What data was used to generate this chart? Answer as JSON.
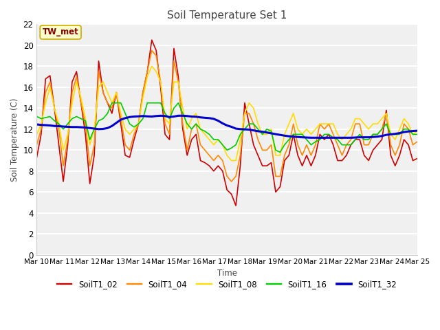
{
  "title": "Soil Temperature Set 1",
  "xlabel": "Time",
  "ylabel": "Soil Temperature (C)",
  "ylim": [
    0,
    22
  ],
  "yticks": [
    0,
    2,
    4,
    6,
    8,
    10,
    12,
    14,
    16,
    18,
    20,
    22
  ],
  "xtick_labels": [
    "Mar 10",
    "Mar 11",
    "Mar 12",
    "Mar 13",
    "Mar 14",
    "Mar 15",
    "Mar 16",
    "Mar 17",
    "Mar 18",
    "Mar 19",
    "Mar 20",
    "Mar 21",
    "Mar 22",
    "Mar 23",
    "Mar 24",
    "Mar 25"
  ],
  "annotation_text": "TW_met",
  "annotation_box_color": "#ffffcc",
  "annotation_text_color": "#880000",
  "fig_bg_color": "#ffffff",
  "plot_bg_color": "#f0f0f0",
  "grid_color": "#ffffff",
  "series_order": [
    "SoilT1_02",
    "SoilT1_04",
    "SoilT1_08",
    "SoilT1_16",
    "SoilT1_32"
  ],
  "series": {
    "SoilT1_02": {
      "color": "#cc0000",
      "linewidth": 1.2
    },
    "SoilT1_04": {
      "color": "#ff8800",
      "linewidth": 1.2
    },
    "SoilT1_08": {
      "color": "#ffdd00",
      "linewidth": 1.2
    },
    "SoilT1_16": {
      "color": "#00cc00",
      "linewidth": 1.2
    },
    "SoilT1_32": {
      "color": "#0000cc",
      "linewidth": 2.2
    }
  },
  "SoilT1_02": [
    9.3,
    11.5,
    16.8,
    17.1,
    14.0,
    10.5,
    7.0,
    10.5,
    16.5,
    17.5,
    14.5,
    11.5,
    6.8,
    9.5,
    18.5,
    15.5,
    14.5,
    13.5,
    15.5,
    12.5,
    9.5,
    9.3,
    11.0,
    12.5,
    15.5,
    17.5,
    20.5,
    19.5,
    16.0,
    11.5,
    11.0,
    19.7,
    17.0,
    12.0,
    9.5,
    11.0,
    11.5,
    9.0,
    8.8,
    8.5,
    8.0,
    8.5,
    8.0,
    6.2,
    5.8,
    4.7,
    8.5,
    14.5,
    12.5,
    10.5,
    9.5,
    8.5,
    8.5,
    8.8,
    6.0,
    6.5,
    9.0,
    9.5,
    11.5,
    9.5,
    8.5,
    9.5,
    8.5,
    9.5,
    11.5,
    11.0,
    11.5,
    10.5,
    9.0,
    9.0,
    9.5,
    10.5,
    11.0,
    11.0,
    9.5,
    9.0,
    10.0,
    10.5,
    11.0,
    13.8,
    9.5,
    8.5,
    9.5,
    11.0,
    10.5,
    9.0,
    9.2
  ],
  "SoilT1_04": [
    10.5,
    12.0,
    15.5,
    16.5,
    14.0,
    12.0,
    8.5,
    11.0,
    15.5,
    17.0,
    14.5,
    12.5,
    8.5,
    10.5,
    17.5,
    15.5,
    14.5,
    14.0,
    15.5,
    13.0,
    10.5,
    10.0,
    11.5,
    12.5,
    15.5,
    17.5,
    19.5,
    19.0,
    16.5,
    12.5,
    11.5,
    18.5,
    16.5,
    12.5,
    10.0,
    12.0,
    12.5,
    10.5,
    10.0,
    9.5,
    9.0,
    9.5,
    9.0,
    7.5,
    7.0,
    7.5,
    9.5,
    13.5,
    13.5,
    12.5,
    11.0,
    10.0,
    10.0,
    10.5,
    7.5,
    7.5,
    9.5,
    10.5,
    12.5,
    10.5,
    9.5,
    10.5,
    9.5,
    10.5,
    12.5,
    12.0,
    12.5,
    11.5,
    10.5,
    9.5,
    10.5,
    11.0,
    12.5,
    12.5,
    10.5,
    10.5,
    11.5,
    11.5,
    12.0,
    13.5,
    10.5,
    9.5,
    10.5,
    12.5,
    12.0,
    10.5,
    10.8
  ],
  "SoilT1_08": [
    11.5,
    12.5,
    14.5,
    16.0,
    14.0,
    12.5,
    10.0,
    11.5,
    14.5,
    16.5,
    15.0,
    13.0,
    10.5,
    12.0,
    16.0,
    16.5,
    15.5,
    14.5,
    15.5,
    13.5,
    12.0,
    11.5,
    12.0,
    12.5,
    15.0,
    17.0,
    18.0,
    17.5,
    16.5,
    13.0,
    12.5,
    16.5,
    16.5,
    14.0,
    12.0,
    13.0,
    13.5,
    12.0,
    11.5,
    11.0,
    10.5,
    11.0,
    10.5,
    9.5,
    9.0,
    9.0,
    11.0,
    13.5,
    14.5,
    14.0,
    12.5,
    11.5,
    11.5,
    12.0,
    9.5,
    9.5,
    11.5,
    12.5,
    13.5,
    12.0,
    11.5,
    12.0,
    11.5,
    12.0,
    12.5,
    12.5,
    12.5,
    12.5,
    11.5,
    11.0,
    11.5,
    12.0,
    13.0,
    13.0,
    12.5,
    12.0,
    12.5,
    12.5,
    13.0,
    13.5,
    11.5,
    11.0,
    12.0,
    13.0,
    12.5,
    11.5,
    11.8
  ],
  "SoilT1_16": [
    13.2,
    13.0,
    13.1,
    13.2,
    12.8,
    12.5,
    12.0,
    12.5,
    13.0,
    13.2,
    13.0,
    12.8,
    11.0,
    12.0,
    12.8,
    13.0,
    13.5,
    14.5,
    14.5,
    14.5,
    13.5,
    12.5,
    12.2,
    12.5,
    13.0,
    14.5,
    14.5,
    14.5,
    14.5,
    13.5,
    13.0,
    14.0,
    14.5,
    13.5,
    12.5,
    12.0,
    12.5,
    12.0,
    11.8,
    11.5,
    11.0,
    11.0,
    10.5,
    10.0,
    10.2,
    10.5,
    11.5,
    12.0,
    12.5,
    12.5,
    12.0,
    11.5,
    12.0,
    11.8,
    10.0,
    9.8,
    10.5,
    11.0,
    11.5,
    11.5,
    11.5,
    11.0,
    10.5,
    10.8,
    11.0,
    11.5,
    11.5,
    11.2,
    11.0,
    10.5,
    10.5,
    10.5,
    11.0,
    11.5,
    11.0,
    11.0,
    11.5,
    11.5,
    12.0,
    12.5,
    11.5,
    11.5,
    11.5,
    12.0,
    12.0,
    11.5,
    11.5
  ],
  "SoilT1_32": [
    12.45,
    12.4,
    12.38,
    12.35,
    12.3,
    12.28,
    12.25,
    12.22,
    12.2,
    12.2,
    12.18,
    12.15,
    12.1,
    12.05,
    12.0,
    12.02,
    12.1,
    12.3,
    12.6,
    12.9,
    13.05,
    13.15,
    13.2,
    13.22,
    13.25,
    13.22,
    13.2,
    13.25,
    13.28,
    13.25,
    13.15,
    13.2,
    13.28,
    13.28,
    13.25,
    13.2,
    13.18,
    13.12,
    13.08,
    13.05,
    12.98,
    12.8,
    12.55,
    12.35,
    12.22,
    12.05,
    12.0,
    11.98,
    11.95,
    11.88,
    11.8,
    11.75,
    11.68,
    11.6,
    11.52,
    11.45,
    11.38,
    11.32,
    11.28,
    11.25,
    11.22,
    11.2,
    11.18,
    11.18,
    11.18,
    11.18,
    11.18,
    11.18,
    11.18,
    11.18,
    11.18,
    11.18,
    11.2,
    11.22,
    11.22,
    11.22,
    11.25,
    11.28,
    11.35,
    11.45,
    11.5,
    11.55,
    11.62,
    11.72,
    11.78,
    11.82,
    11.85
  ]
}
